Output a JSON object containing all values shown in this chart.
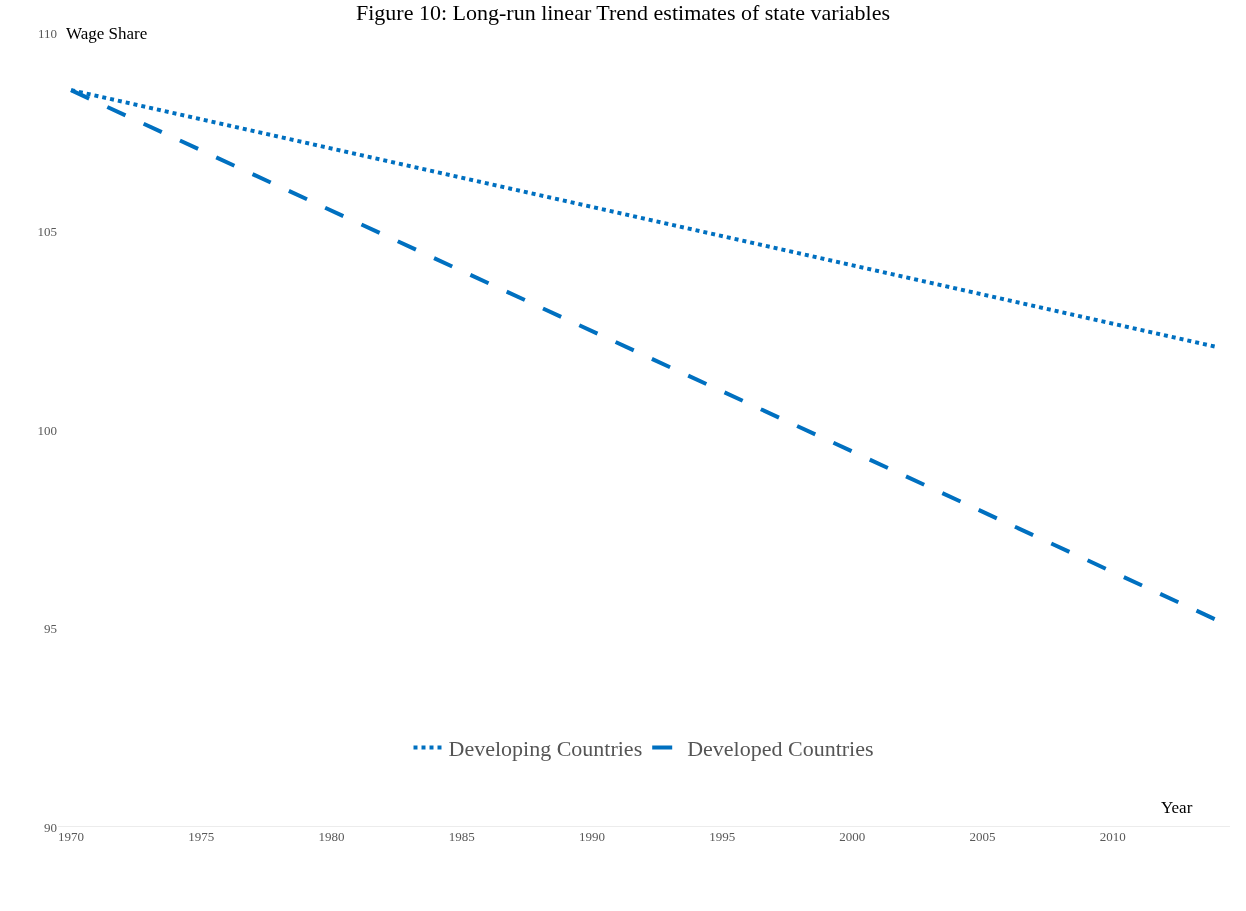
{
  "chart_data": {
    "type": "line",
    "title": "Figure 10: Long-run linear Trend estimates of state variables",
    "xlabel": "Year",
    "ylabel": "Wage Share",
    "x": [
      1970,
      2014
    ],
    "series": [
      {
        "name": "Developing Countries",
        "color": "#0070c0",
        "line_style": "dotted",
        "values": [
          108.56,
          102.09
        ]
      },
      {
        "name": "Developed Countries",
        "color": "#0070c0",
        "line_style": "dashed",
        "values": [
          108.56,
          95.21
        ]
      }
    ],
    "xlim": [
      1969.5,
      2014.5
    ],
    "xticks": [
      1970,
      1975,
      1980,
      1985,
      1990,
      1995,
      2000,
      2005,
      2010
    ],
    "ylim": [
      90,
      110
    ],
    "yticks": [
      90,
      95,
      100,
      105,
      110
    ],
    "grid": false,
    "legend": "bottom",
    "marker": "none"
  }
}
